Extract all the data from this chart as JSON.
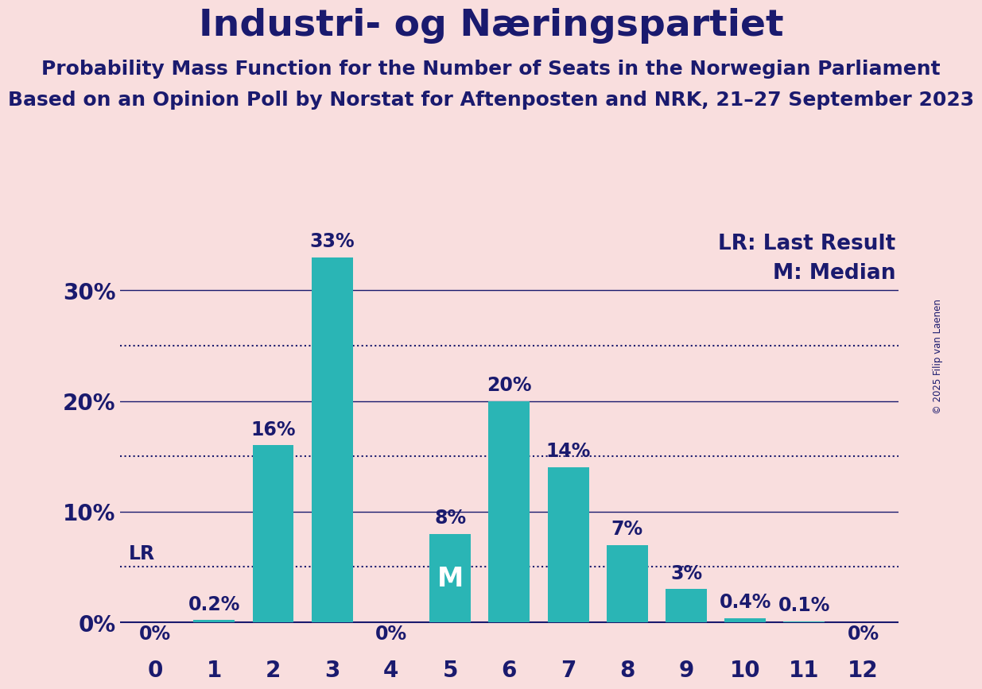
{
  "title": "Industri- og Næringspartiet",
  "subtitle1": "Probability Mass Function for the Number of Seats in the Norwegian Parliament",
  "subtitle2": "Based on an Opinion Poll by Norstat for Aftenposten and NRK, 21–27 September 2023",
  "copyright": "© 2025 Filip van Laenen",
  "categories": [
    0,
    1,
    2,
    3,
    4,
    5,
    6,
    7,
    8,
    9,
    10,
    11,
    12
  ],
  "values": [
    0.0,
    0.2,
    16.0,
    33.0,
    0.0,
    8.0,
    20.0,
    14.0,
    7.0,
    3.0,
    0.4,
    0.1,
    0.0
  ],
  "labels": [
    "0%",
    "0.2%",
    "16%",
    "33%",
    "0%",
    "8%",
    "20%",
    "14%",
    "7%",
    "3%",
    "0.4%",
    "0.1%",
    "0%"
  ],
  "bar_color": "#2ab5b5",
  "background_color": "#f9dede",
  "text_color": "#1a1a6e",
  "ylim_min": 0,
  "ylim_max": 36,
  "yticks": [
    0,
    10,
    20,
    30
  ],
  "ytick_labels": [
    "0%",
    "10%",
    "20%",
    "30%"
  ],
  "dotted_lines": [
    5,
    15,
    25
  ],
  "lr_value": 5.0,
  "median_seat": 5,
  "legend_lr": "LR: Last Result",
  "legend_m": "M: Median",
  "title_fontsize": 34,
  "subtitle_fontsize": 18,
  "label_fontsize": 17,
  "tick_fontsize": 20,
  "legend_fontsize": 19
}
